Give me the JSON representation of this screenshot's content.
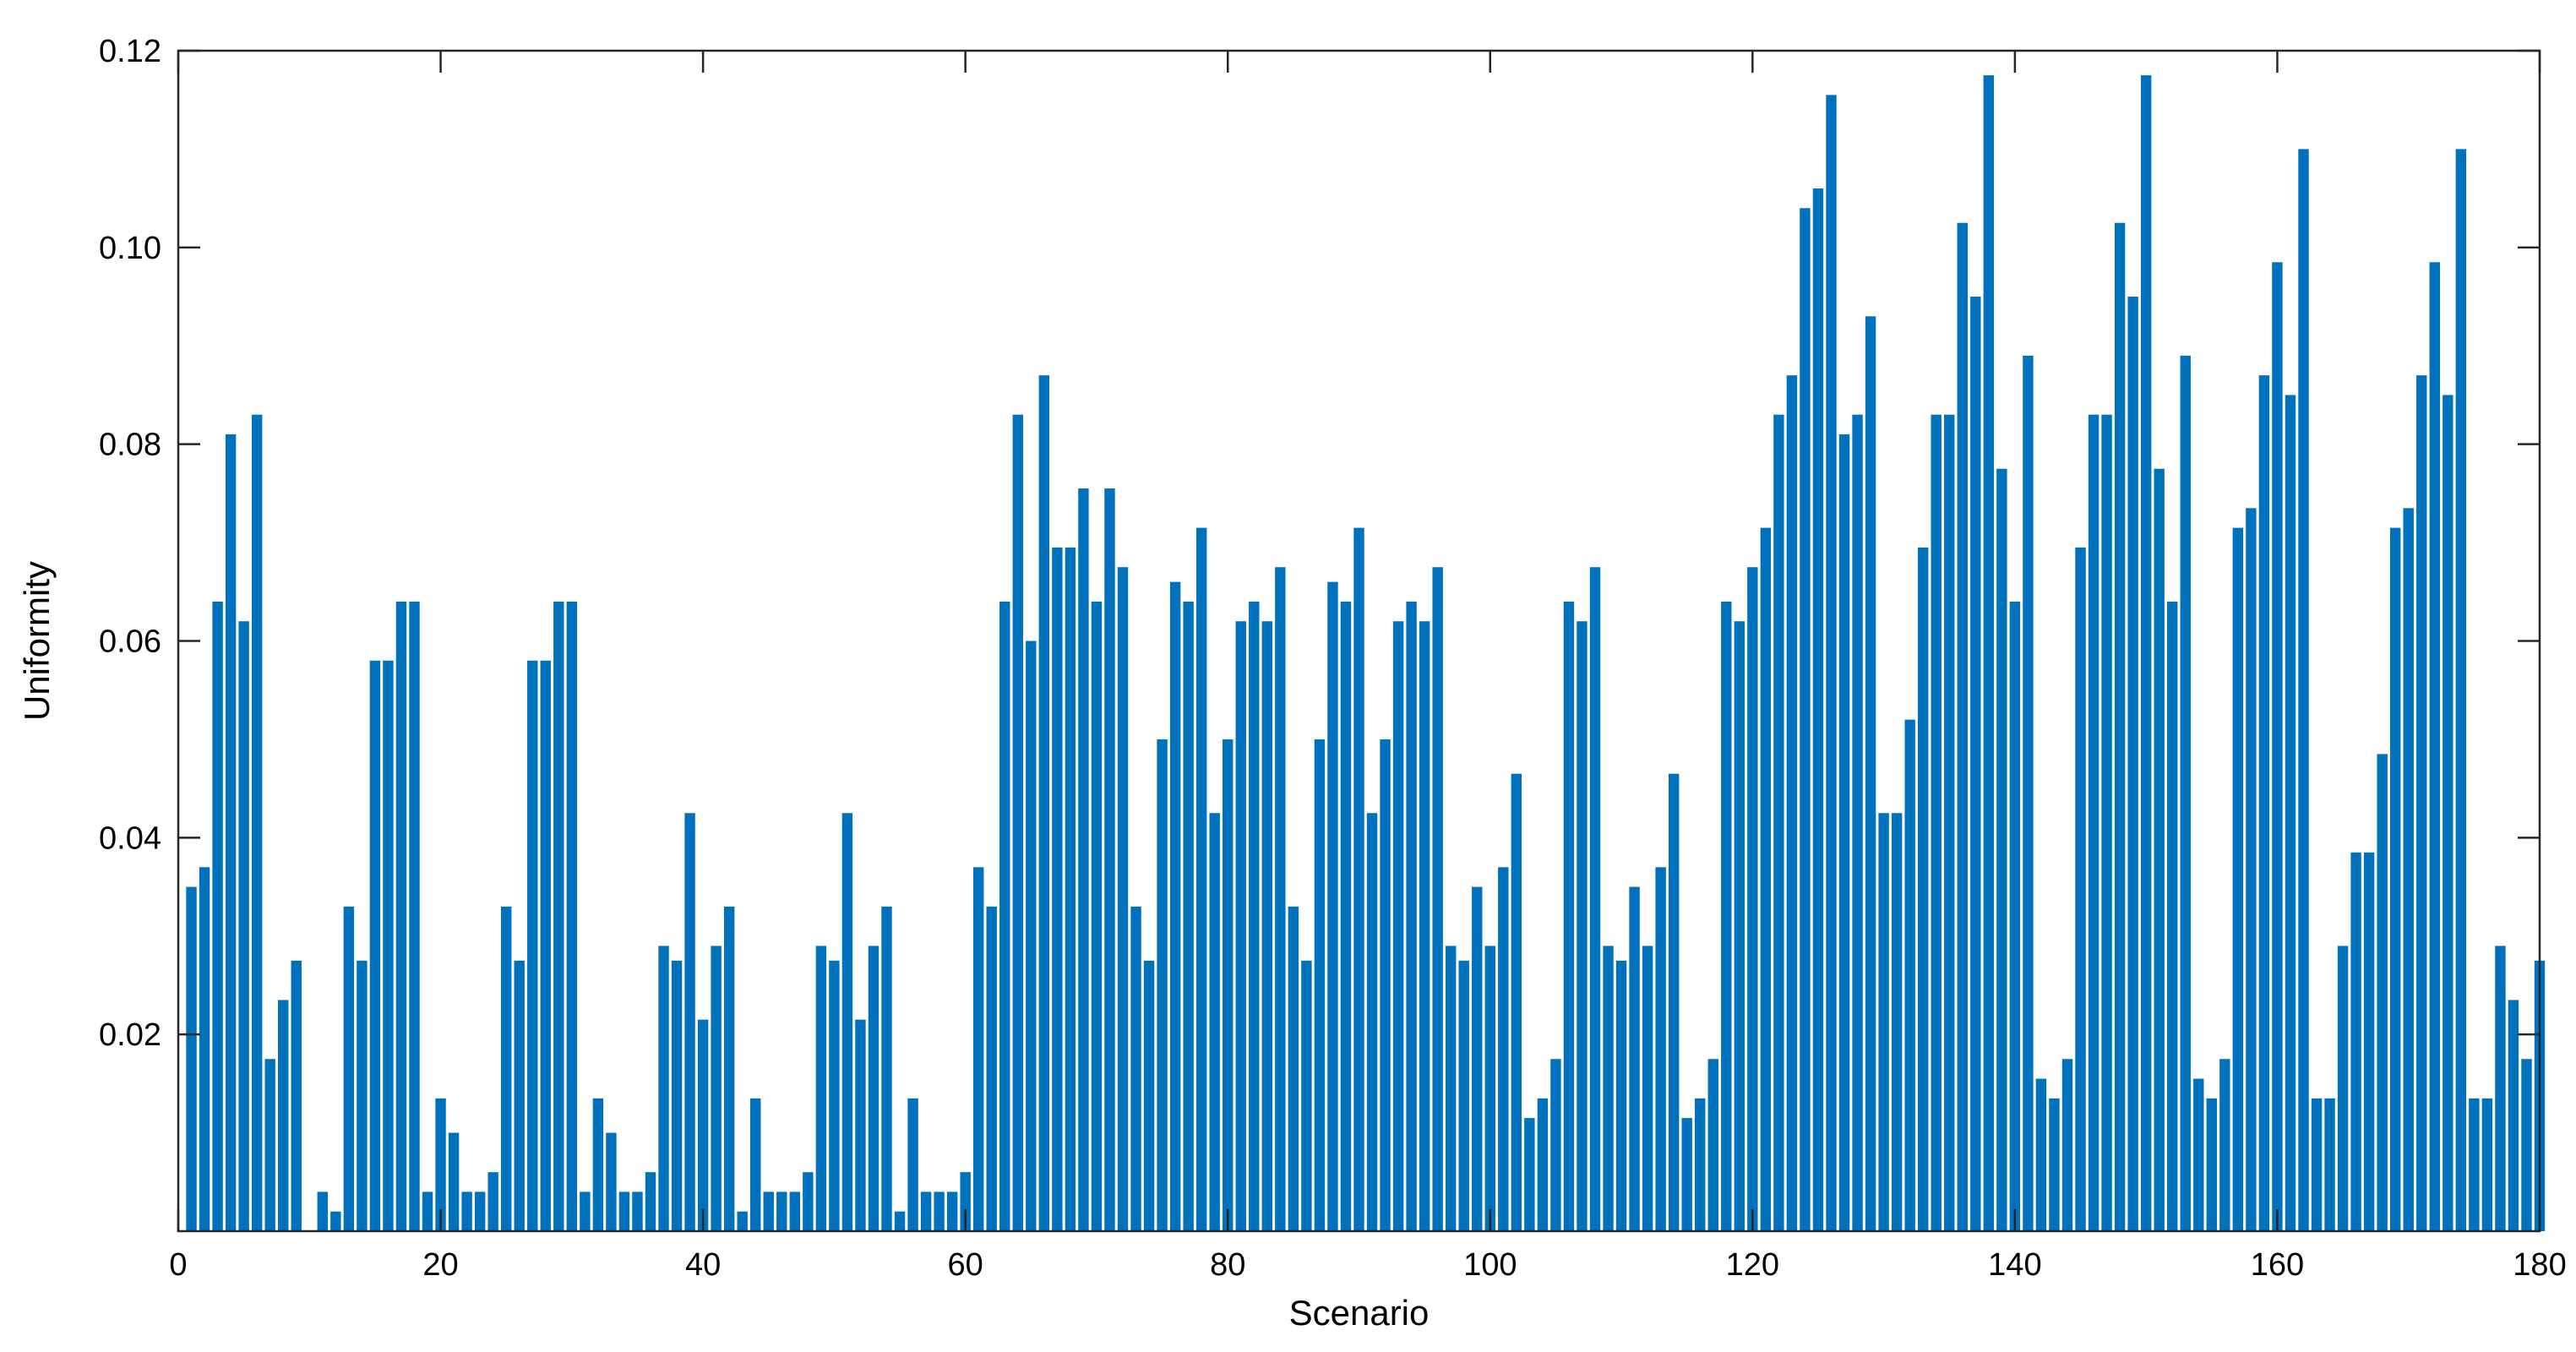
{
  "chart_data": {
    "type": "bar",
    "xlabel": "Scenario",
    "ylabel": "Uniformity",
    "xlim": [
      0,
      180
    ],
    "ylim": [
      0,
      0.12
    ],
    "x_ticks": [
      0,
      20,
      40,
      60,
      80,
      100,
      120,
      140,
      160,
      180
    ],
    "x_tick_labels": [
      "0",
      "20",
      "40",
      "60",
      "80",
      "100",
      "120",
      "140",
      "160",
      "180"
    ],
    "y_ticks": [
      0.02,
      0.04,
      0.06,
      0.08,
      0.1,
      0.12
    ],
    "y_tick_labels": [
      "0.02",
      "0.04",
      "0.06",
      "0.08",
      "0.10",
      "0.12"
    ],
    "grid": false,
    "bar_color": "#0072BD",
    "x": [
      1,
      2,
      3,
      4,
      5,
      6,
      7,
      8,
      9,
      10,
      11,
      12,
      13,
      14,
      15,
      16,
      17,
      18,
      19,
      20,
      21,
      22,
      23,
      24,
      25,
      26,
      27,
      28,
      29,
      30,
      31,
      32,
      33,
      34,
      35,
      36,
      37,
      38,
      39,
      40,
      41,
      42,
      43,
      44,
      45,
      46,
      47,
      48,
      49,
      50,
      51,
      52,
      53,
      54,
      55,
      56,
      57,
      58,
      59,
      60,
      61,
      62,
      63,
      64,
      65,
      66,
      67,
      68,
      69,
      70,
      71,
      72,
      73,
      74,
      75,
      76,
      77,
      78,
      79,
      80,
      81,
      82,
      83,
      84,
      85,
      86,
      87,
      88,
      89,
      90,
      91,
      92,
      93,
      94,
      95,
      96,
      97,
      98,
      99,
      100,
      101,
      102,
      103,
      104,
      105,
      106,
      107,
      108,
      109,
      110,
      111,
      112,
      113,
      114,
      115,
      116,
      117,
      118,
      119,
      120,
      121,
      122,
      123,
      124,
      125,
      126,
      127,
      128,
      129,
      130,
      131,
      132,
      133,
      134,
      135,
      136,
      137,
      138,
      139,
      140,
      141,
      142,
      143,
      144,
      145,
      146,
      147,
      148,
      149,
      150,
      151,
      152,
      153,
      154,
      155,
      156,
      157,
      158,
      159,
      160,
      161,
      162,
      163,
      164,
      165,
      166,
      167,
      168,
      169,
      170,
      171,
      172,
      173,
      174,
      175,
      176,
      177,
      178,
      179,
      180
    ],
    "values": [
      0.035,
      0.037,
      0.064,
      0.081,
      0.062,
      0.083,
      0.0175,
      0.0235,
      0.0275,
      0,
      0.004,
      0.002,
      0.033,
      0.0275,
      0.058,
      0.058,
      0.064,
      0.064,
      0.004,
      0.0135,
      0.01,
      0.004,
      0.004,
      0.006,
      0.033,
      0.0275,
      0.058,
      0.058,
      0.064,
      0.064,
      0.004,
      0.0135,
      0.01,
      0.004,
      0.004,
      0.006,
      0.029,
      0.0275,
      0.0425,
      0.0215,
      0.029,
      0.033,
      0.002,
      0.0135,
      0.004,
      0.004,
      0.004,
      0.006,
      0.029,
      0.0275,
      0.0425,
      0.0215,
      0.029,
      0.033,
      0.002,
      0.0135,
      0.004,
      0.004,
      0.004,
      0.006,
      0.037,
      0.033,
      0.064,
      0.083,
      0.06,
      0.087,
      0.0695,
      0.0695,
      0.0755,
      0.064,
      0.0755,
      0.0675,
      0.033,
      0.0275,
      0.05,
      0.066,
      0.064,
      0.0715,
      0.0425,
      0.05,
      0.062,
      0.064,
      0.062,
      0.0675,
      0.033,
      0.0275,
      0.05,
      0.066,
      0.064,
      0.0715,
      0.0425,
      0.05,
      0.062,
      0.064,
      0.062,
      0.0675,
      0.029,
      0.0275,
      0.035,
      0.029,
      0.037,
      0.0465,
      0.0115,
      0.0135,
      0.0175,
      0.064,
      0.062,
      0.0675,
      0.029,
      0.0275,
      0.035,
      0.029,
      0.037,
      0.0465,
      0.0115,
      0.0135,
      0.0175,
      0.064,
      0.062,
      0.0675,
      0.0715,
      0.083,
      0.087,
      0.104,
      0.106,
      0.1155,
      0.081,
      0.083,
      0.093,
      0.0425,
      0.0425,
      0.052,
      0.0695,
      0.083,
      0.083,
      0.1025,
      0.095,
      0.1175,
      0.0775,
      0.064,
      0.089,
      0.0155,
      0.0135,
      0.0175,
      0.0695,
      0.083,
      0.083,
      0.1025,
      0.095,
      0.1175,
      0.0775,
      0.064,
      0.089,
      0.0155,
      0.0135,
      0.0175,
      0.0715,
      0.0735,
      0.087,
      0.0985,
      0.085,
      0.11,
      0.0135,
      0.0135,
      0.029,
      0.0385,
      0.0385,
      0.0485,
      0.0715,
      0.0735,
      0.087,
      0.0985,
      0.085,
      0.11,
      0.0135,
      0.0135,
      0.029,
      0.0235,
      0.0175,
      0.0275
    ]
  }
}
